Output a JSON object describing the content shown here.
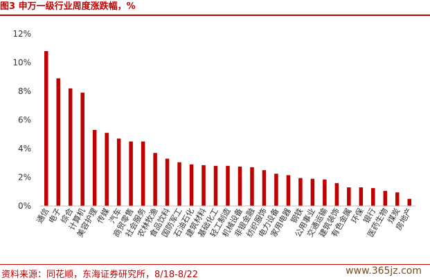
{
  "title": "图3  申万一级行业周度涨跌幅，%",
  "source": "资料来源：同花顺，东海证券研究所，8/18-8/22",
  "watermark": "www.365jz.com",
  "colors": {
    "bar": "#c00000",
    "axis": "#bfbfbf",
    "title": "#c00000",
    "text": "#333333"
  },
  "chart_data": {
    "type": "bar",
    "categories": [
      "通信",
      "电子",
      "综合",
      "计算机",
      "美容护理",
      "传媒",
      "汽车",
      "商贸零售",
      "社会服务",
      "农林牧渔",
      "食品饮料",
      "国防军工",
      "石油石化",
      "建筑材料",
      "基础化工",
      "轻工制造",
      "机械设备",
      "非银金融",
      "纺织服饰",
      "电力设备",
      "家用电器",
      "钢铁",
      "公用事业",
      "交通运输",
      "建筑装饰",
      "有色金属",
      "环保",
      "银行",
      "医药生物",
      "煤炭",
      "房地产"
    ],
    "values": [
      10.8,
      8.9,
      8.2,
      7.9,
      5.3,
      5.1,
      4.7,
      4.5,
      4.5,
      3.7,
      3.3,
      3.05,
      2.9,
      2.85,
      2.8,
      2.8,
      2.75,
      2.7,
      2.5,
      2.25,
      2.15,
      1.95,
      1.9,
      1.85,
      1.6,
      1.3,
      1.3,
      1.25,
      1.05,
      0.95,
      0.5
    ],
    "yticks": [
      "0%",
      "2%",
      "4%",
      "6%",
      "8%",
      "10%",
      "12%"
    ],
    "ylim": [
      0,
      12
    ],
    "grid": false
  }
}
